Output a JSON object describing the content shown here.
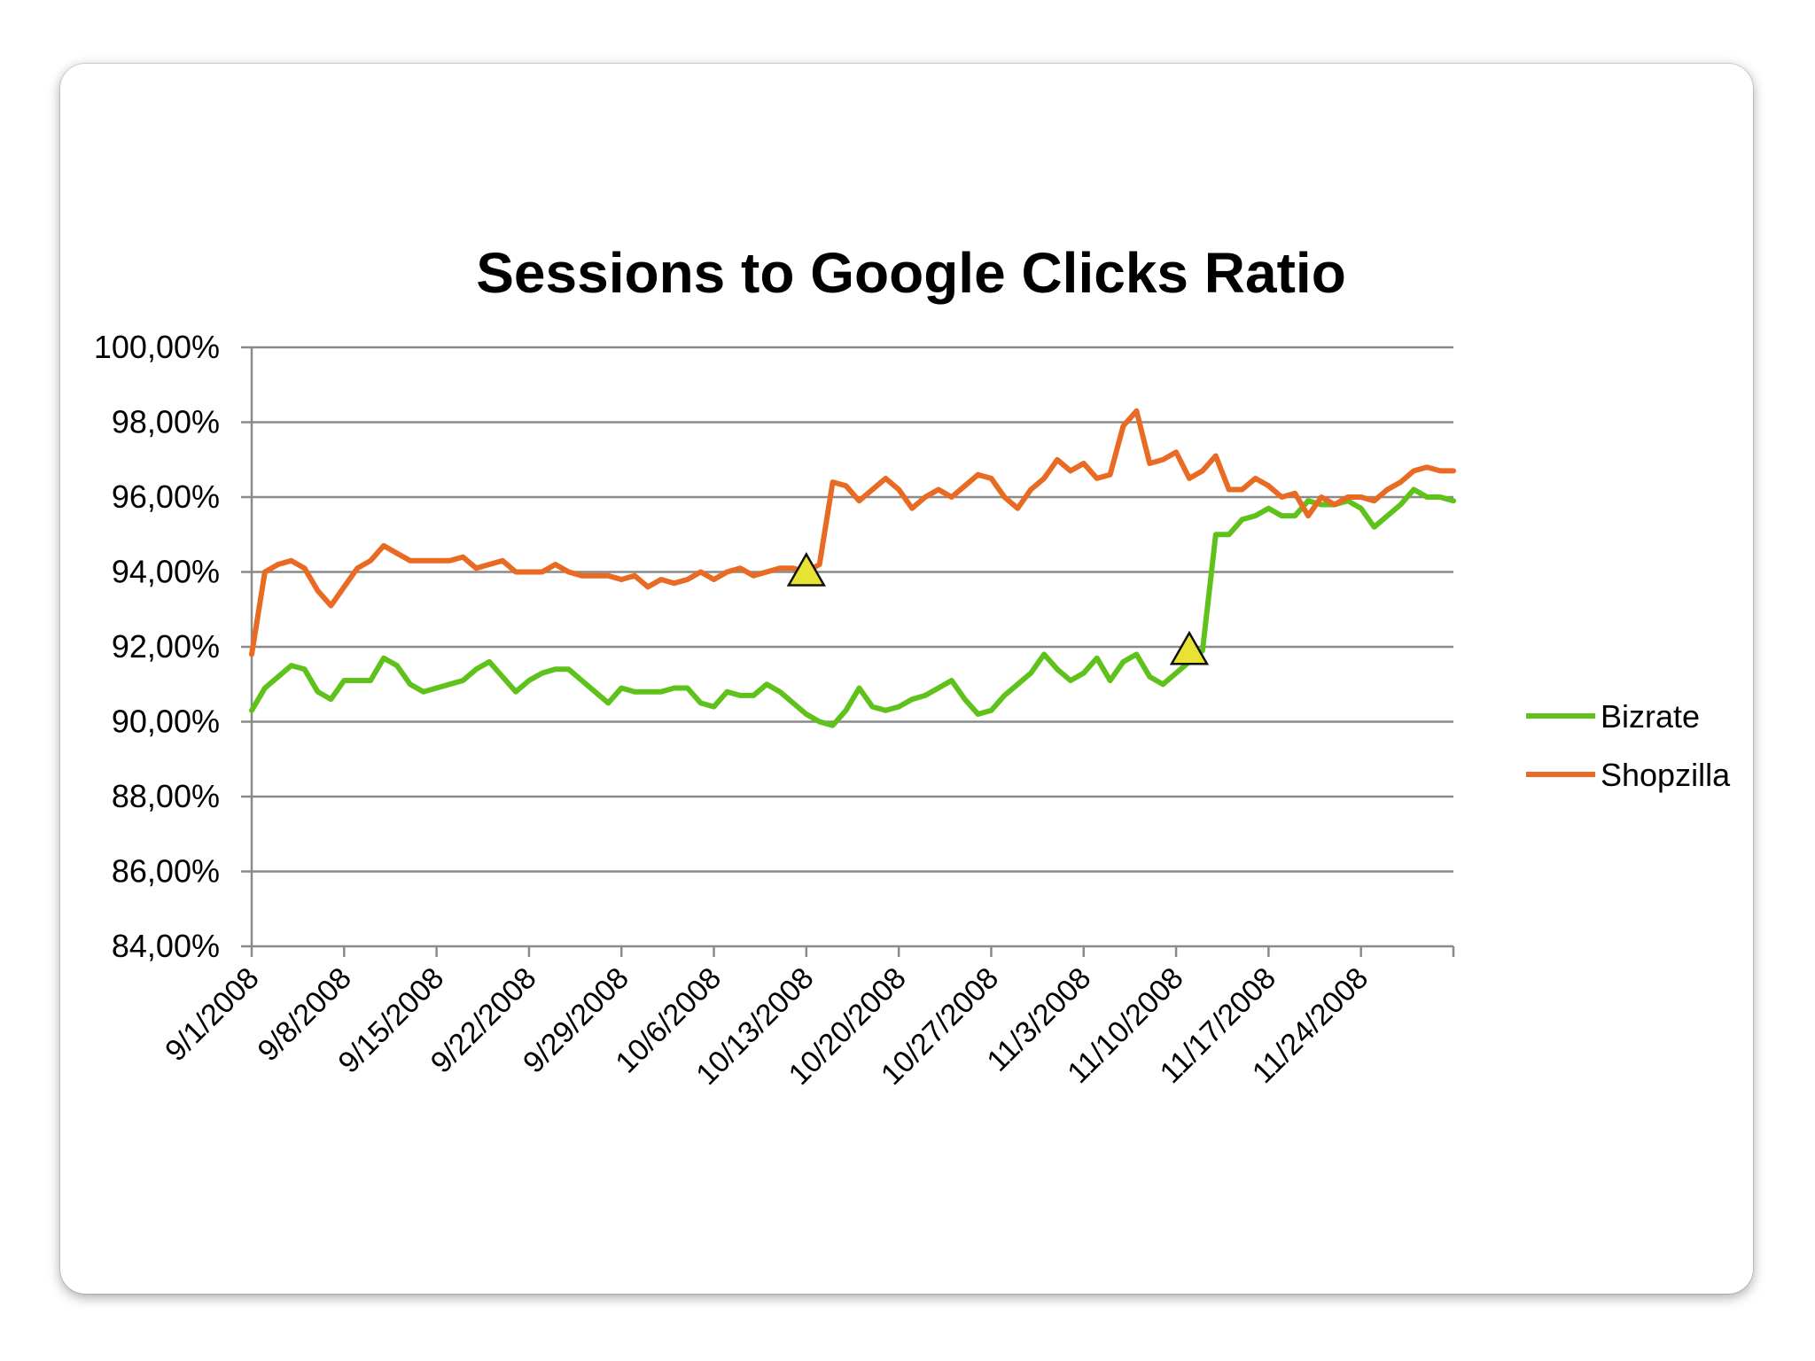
{
  "chart_data": {
    "type": "line",
    "title": "Sessions to Google Clicks Ratio",
    "xlabel": "",
    "ylabel": "",
    "ylim": [
      84,
      100
    ],
    "yticks": [
      "100,00%",
      "98,00%",
      "96,00%",
      "94,00%",
      "92,00%",
      "90,00%",
      "88,00%",
      "86,00%",
      "84,00%"
    ],
    "ytick_values": [
      100,
      98,
      96,
      94,
      92,
      90,
      88,
      86,
      84
    ],
    "xticks": [
      "9/1/2008",
      "9/8/2008",
      "9/15/2008",
      "9/22/2008",
      "9/29/2008",
      "10/6/2008",
      "10/13/2008",
      "10/20/2008",
      "10/27/2008",
      "11/3/2008",
      "11/10/2008",
      "11/17/2008",
      "11/24/2008"
    ],
    "x_range": [
      "2008-09-01",
      "2008-12-01"
    ],
    "grid": true,
    "legend_position": "right",
    "series": [
      {
        "name": "Bizrate",
        "color": "#5fc21a",
        "points": [
          [
            "2008-09-01",
            90.3
          ],
          [
            "2008-09-02",
            90.9
          ],
          [
            "2008-09-03",
            91.2
          ],
          [
            "2008-09-04",
            91.5
          ],
          [
            "2008-09-05",
            91.4
          ],
          [
            "2008-09-06",
            90.8
          ],
          [
            "2008-09-07",
            90.6
          ],
          [
            "2008-09-08",
            91.1
          ],
          [
            "2008-09-09",
            91.1
          ],
          [
            "2008-09-10",
            91.1
          ],
          [
            "2008-09-11",
            91.7
          ],
          [
            "2008-09-12",
            91.5
          ],
          [
            "2008-09-13",
            91.0
          ],
          [
            "2008-09-14",
            90.8
          ],
          [
            "2008-09-15",
            90.9
          ],
          [
            "2008-09-16",
            91.0
          ],
          [
            "2008-09-17",
            91.1
          ],
          [
            "2008-09-18",
            91.4
          ],
          [
            "2008-09-19",
            91.6
          ],
          [
            "2008-09-20",
            91.2
          ],
          [
            "2008-09-21",
            90.8
          ],
          [
            "2008-09-22",
            91.1
          ],
          [
            "2008-09-23",
            91.3
          ],
          [
            "2008-09-24",
            91.4
          ],
          [
            "2008-09-25",
            91.4
          ],
          [
            "2008-09-26",
            91.1
          ],
          [
            "2008-09-27",
            90.8
          ],
          [
            "2008-09-28",
            90.5
          ],
          [
            "2008-09-29",
            90.9
          ],
          [
            "2008-09-30",
            90.8
          ],
          [
            "2008-10-01",
            90.8
          ],
          [
            "2008-10-02",
            90.8
          ],
          [
            "2008-10-03",
            90.9
          ],
          [
            "2008-10-04",
            90.9
          ],
          [
            "2008-10-05",
            90.5
          ],
          [
            "2008-10-06",
            90.4
          ],
          [
            "2008-10-07",
            90.8
          ],
          [
            "2008-10-08",
            90.7
          ],
          [
            "2008-10-09",
            90.7
          ],
          [
            "2008-10-10",
            91.0
          ],
          [
            "2008-10-11",
            90.8
          ],
          [
            "2008-10-12",
            90.5
          ],
          [
            "2008-10-13",
            90.2
          ],
          [
            "2008-10-14",
            90.0
          ],
          [
            "2008-10-15",
            89.9
          ],
          [
            "2008-10-16",
            90.3
          ],
          [
            "2008-10-17",
            90.9
          ],
          [
            "2008-10-18",
            90.4
          ],
          [
            "2008-10-19",
            90.3
          ],
          [
            "2008-10-20",
            90.4
          ],
          [
            "2008-10-21",
            90.6
          ],
          [
            "2008-10-22",
            90.7
          ],
          [
            "2008-10-23",
            90.9
          ],
          [
            "2008-10-24",
            91.1
          ],
          [
            "2008-10-25",
            90.6
          ],
          [
            "2008-10-26",
            90.2
          ],
          [
            "2008-10-27",
            90.3
          ],
          [
            "2008-10-28",
            90.7
          ],
          [
            "2008-10-29",
            91.0
          ],
          [
            "2008-10-30",
            91.3
          ],
          [
            "2008-10-31",
            91.8
          ],
          [
            "2008-11-01",
            91.4
          ],
          [
            "2008-11-02",
            91.1
          ],
          [
            "2008-11-03",
            91.3
          ],
          [
            "2008-11-04",
            91.7
          ],
          [
            "2008-11-05",
            91.1
          ],
          [
            "2008-11-06",
            91.6
          ],
          [
            "2008-11-07",
            91.8
          ],
          [
            "2008-11-08",
            91.2
          ],
          [
            "2008-11-09",
            91.0
          ],
          [
            "2008-11-10",
            91.3
          ],
          [
            "2008-11-11",
            91.6
          ],
          [
            "2008-11-12",
            91.9
          ],
          [
            "2008-11-13",
            95.0
          ],
          [
            "2008-11-14",
            95.0
          ],
          [
            "2008-11-15",
            95.4
          ],
          [
            "2008-11-16",
            95.5
          ],
          [
            "2008-11-17",
            95.7
          ],
          [
            "2008-11-18",
            95.5
          ],
          [
            "2008-11-19",
            95.5
          ],
          [
            "2008-11-20",
            95.9
          ],
          [
            "2008-11-21",
            95.8
          ],
          [
            "2008-11-22",
            95.8
          ],
          [
            "2008-11-23",
            95.9
          ],
          [
            "2008-11-24",
            95.7
          ],
          [
            "2008-11-25",
            95.2
          ],
          [
            "2008-11-26",
            95.5
          ],
          [
            "2008-11-27",
            95.8
          ],
          [
            "2008-11-28",
            96.2
          ],
          [
            "2008-11-29",
            96.0
          ],
          [
            "2008-11-30",
            96.0
          ],
          [
            "2008-12-01",
            95.9
          ]
        ]
      },
      {
        "name": "Shopzilla",
        "color": "#e96a22",
        "points": [
          [
            "2008-09-01",
            91.8
          ],
          [
            "2008-09-02",
            94.0
          ],
          [
            "2008-09-03",
            94.2
          ],
          [
            "2008-09-04",
            94.3
          ],
          [
            "2008-09-05",
            94.1
          ],
          [
            "2008-09-06",
            93.5
          ],
          [
            "2008-09-07",
            93.1
          ],
          [
            "2008-09-08",
            93.6
          ],
          [
            "2008-09-09",
            94.1
          ],
          [
            "2008-09-10",
            94.3
          ],
          [
            "2008-09-11",
            94.7
          ],
          [
            "2008-09-12",
            94.5
          ],
          [
            "2008-09-13",
            94.3
          ],
          [
            "2008-09-14",
            94.3
          ],
          [
            "2008-09-15",
            94.3
          ],
          [
            "2008-09-16",
            94.3
          ],
          [
            "2008-09-17",
            94.4
          ],
          [
            "2008-09-18",
            94.1
          ],
          [
            "2008-09-19",
            94.2
          ],
          [
            "2008-09-20",
            94.3
          ],
          [
            "2008-09-21",
            94.0
          ],
          [
            "2008-09-22",
            94.0
          ],
          [
            "2008-09-23",
            94.0
          ],
          [
            "2008-09-24",
            94.2
          ],
          [
            "2008-09-25",
            94.0
          ],
          [
            "2008-09-26",
            93.9
          ],
          [
            "2008-09-27",
            93.9
          ],
          [
            "2008-09-28",
            93.9
          ],
          [
            "2008-09-29",
            93.8
          ],
          [
            "2008-09-30",
            93.9
          ],
          [
            "2008-10-01",
            93.6
          ],
          [
            "2008-10-02",
            93.8
          ],
          [
            "2008-10-03",
            93.7
          ],
          [
            "2008-10-04",
            93.8
          ],
          [
            "2008-10-05",
            94.0
          ],
          [
            "2008-10-06",
            93.8
          ],
          [
            "2008-10-07",
            94.0
          ],
          [
            "2008-10-08",
            94.1
          ],
          [
            "2008-10-09",
            93.9
          ],
          [
            "2008-10-10",
            94.0
          ],
          [
            "2008-10-11",
            94.1
          ],
          [
            "2008-10-12",
            94.1
          ],
          [
            "2008-10-13",
            94.0
          ],
          [
            "2008-10-14",
            94.2
          ],
          [
            "2008-10-15",
            96.4
          ],
          [
            "2008-10-16",
            96.3
          ],
          [
            "2008-10-17",
            95.9
          ],
          [
            "2008-10-18",
            96.2
          ],
          [
            "2008-10-19",
            96.5
          ],
          [
            "2008-10-20",
            96.2
          ],
          [
            "2008-10-21",
            95.7
          ],
          [
            "2008-10-22",
            96.0
          ],
          [
            "2008-10-23",
            96.2
          ],
          [
            "2008-10-24",
            96.0
          ],
          [
            "2008-10-25",
            96.3
          ],
          [
            "2008-10-26",
            96.6
          ],
          [
            "2008-10-27",
            96.5
          ],
          [
            "2008-10-28",
            96.0
          ],
          [
            "2008-10-29",
            95.7
          ],
          [
            "2008-10-30",
            96.2
          ],
          [
            "2008-10-31",
            96.5
          ],
          [
            "2008-11-01",
            97.0
          ],
          [
            "2008-11-02",
            96.7
          ],
          [
            "2008-11-03",
            96.9
          ],
          [
            "2008-11-04",
            96.5
          ],
          [
            "2008-11-05",
            96.6
          ],
          [
            "2008-11-06",
            97.9
          ],
          [
            "2008-11-07",
            98.3
          ],
          [
            "2008-11-08",
            96.9
          ],
          [
            "2008-11-09",
            97.0
          ],
          [
            "2008-11-10",
            97.2
          ],
          [
            "2008-11-11",
            96.5
          ],
          [
            "2008-11-12",
            96.7
          ],
          [
            "2008-11-13",
            97.1
          ],
          [
            "2008-11-14",
            96.2
          ],
          [
            "2008-11-15",
            96.2
          ],
          [
            "2008-11-16",
            96.5
          ],
          [
            "2008-11-17",
            96.3
          ],
          [
            "2008-11-18",
            96.0
          ],
          [
            "2008-11-19",
            96.1
          ],
          [
            "2008-11-20",
            95.5
          ],
          [
            "2008-11-21",
            96.0
          ],
          [
            "2008-11-22",
            95.8
          ],
          [
            "2008-11-23",
            96.0
          ],
          [
            "2008-11-24",
            96.0
          ],
          [
            "2008-11-25",
            95.9
          ],
          [
            "2008-11-26",
            96.2
          ],
          [
            "2008-11-27",
            96.4
          ],
          [
            "2008-11-28",
            96.7
          ],
          [
            "2008-11-29",
            96.8
          ],
          [
            "2008-11-30",
            96.7
          ],
          [
            "2008-12-01",
            96.7
          ]
        ]
      }
    ],
    "annotations": [
      {
        "type": "marker",
        "shape": "triangle",
        "color": "#e8e234",
        "x": "2008-10-13",
        "y": 94.0
      },
      {
        "type": "marker",
        "shape": "triangle",
        "color": "#e8e234",
        "x": "2008-11-11",
        "y": 91.9
      }
    ]
  }
}
